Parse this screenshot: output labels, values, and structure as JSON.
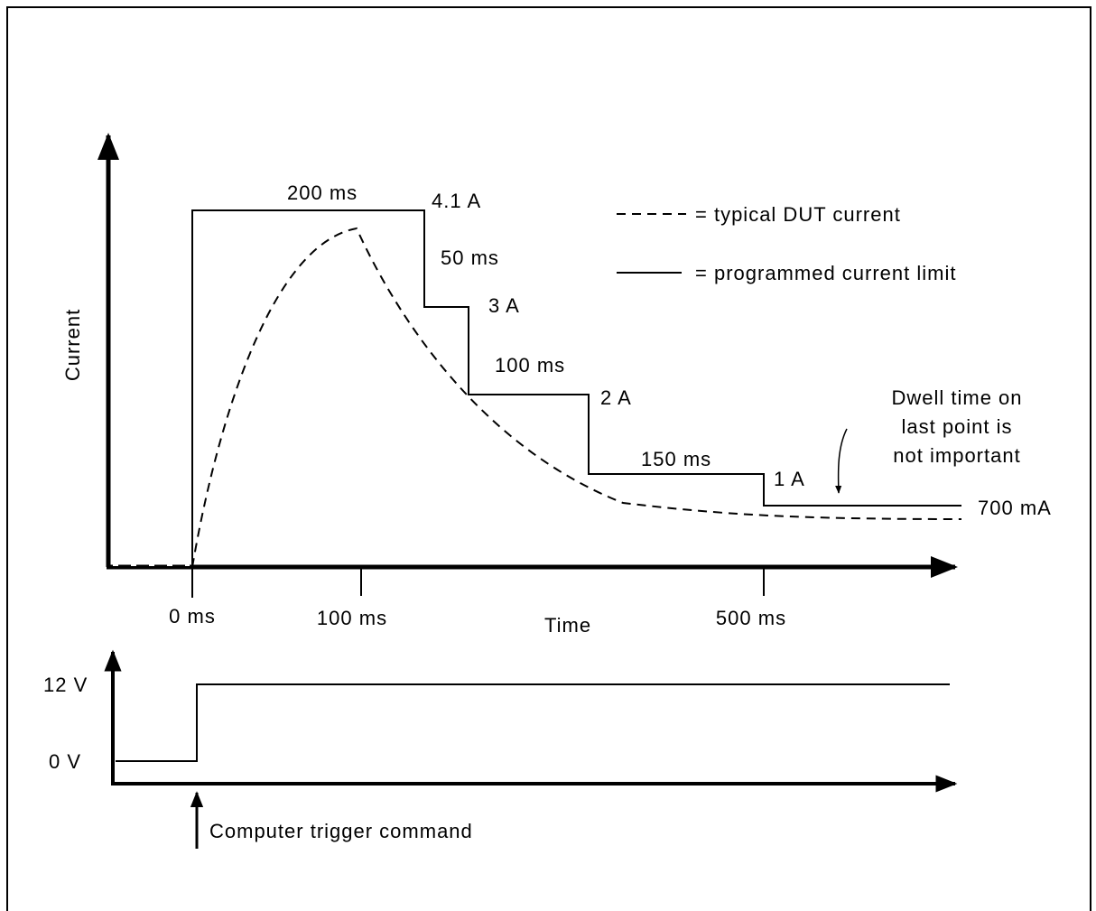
{
  "current_plot": {
    "y_axis_label": "Current",
    "x_axis_label": "Time",
    "time_ticks": [
      "0 ms",
      "100 ms",
      "500 ms"
    ],
    "steps": [
      {
        "duration": "200 ms",
        "level": "4.1 A"
      },
      {
        "duration": "50 ms",
        "level": "3 A"
      },
      {
        "duration": "100 ms",
        "level": "2 A"
      },
      {
        "duration": "150 ms",
        "level": "1 A"
      },
      {
        "level": "700 mA"
      }
    ],
    "note": [
      "Dwell time on",
      "last point is",
      "not important"
    ]
  },
  "legend": [
    "= typical DUT current",
    "= programmed current limit"
  ],
  "trigger_plot": {
    "levels": [
      "12 V",
      "0 V"
    ],
    "annotation": "Computer trigger command"
  }
}
